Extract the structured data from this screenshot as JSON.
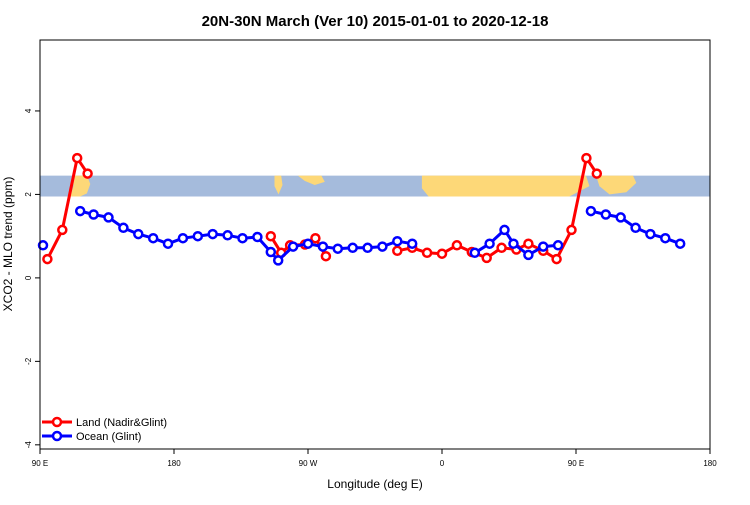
{
  "chart_data": {
    "type": "line",
    "title": "20N-30N March (Ver 10)   2015-01-01 to 2020-12-18",
    "xlabel": "Longitude (deg E)",
    "ylabel": "XCO2 - MLO trend (ppm)",
    "xlim": [
      90,
      540
    ],
    "ylim": [
      -4.1,
      5.7
    ],
    "x_ticks": [
      {
        "value": 90,
        "label": "90 E"
      },
      {
        "value": 180,
        "label": "180"
      },
      {
        "value": 270,
        "label": "90 W"
      },
      {
        "value": 360,
        "label": "0"
      },
      {
        "value": 450,
        "label": "90 E"
      },
      {
        "value": 540,
        "label": "180"
      }
    ],
    "y_ticks": [
      {
        "value": -4,
        "label": "-4"
      },
      {
        "value": -2,
        "label": "-2"
      },
      {
        "value": 0,
        "label": "0"
      },
      {
        "value": 2,
        "label": "2"
      },
      {
        "value": 4,
        "label": "4"
      }
    ],
    "grid": false,
    "legend_position": "bottom-left",
    "band": {
      "y_min": 1.95,
      "y_max": 2.45,
      "ocean_color": "#a5bbdc",
      "land_color": "#fdd878"
    },
    "series": [
      {
        "name": "Land (Nadir&Glint)",
        "color": "#ff0000",
        "segments": [
          [
            [
              95,
              0.45
            ],
            [
              105,
              1.15
            ],
            [
              115,
              2.87
            ],
            [
              122,
              2.5
            ]
          ],
          [
            [
              245,
              1.0
            ],
            [
              252,
              0.6
            ],
            [
              258,
              0.78
            ],
            [
              268,
              0.8
            ],
            [
              275,
              0.95
            ],
            [
              282,
              0.52
            ]
          ],
          [
            [
              330,
              0.65
            ],
            [
              340,
              0.72
            ],
            [
              350,
              0.6
            ],
            [
              360,
              0.58
            ],
            [
              370,
              0.78
            ],
            [
              380,
              0.62
            ],
            [
              390,
              0.48
            ],
            [
              400,
              0.72
            ],
            [
              410,
              0.68
            ],
            [
              418,
              0.82
            ],
            [
              428,
              0.65
            ],
            [
              437,
              0.45
            ],
            [
              447,
              1.15
            ],
            [
              457,
              2.87
            ],
            [
              464,
              2.5
            ]
          ]
        ]
      },
      {
        "name": "Ocean (Glint)",
        "color": "#0000ff",
        "segments": [
          [
            [
              92,
              0.78
            ]
          ],
          [
            [
              117,
              1.6
            ],
            [
              126,
              1.52
            ],
            [
              136,
              1.45
            ],
            [
              146,
              1.2
            ],
            [
              156,
              1.05
            ],
            [
              166,
              0.95
            ],
            [
              176,
              0.82
            ],
            [
              186,
              0.95
            ],
            [
              196,
              1.0
            ],
            [
              206,
              1.05
            ],
            [
              216,
              1.02
            ],
            [
              226,
              0.95
            ],
            [
              236,
              0.98
            ],
            [
              245,
              0.62
            ],
            [
              250,
              0.42
            ],
            [
              260,
              0.75
            ],
            [
              270,
              0.82
            ],
            [
              280,
              0.75
            ],
            [
              290,
              0.7
            ],
            [
              300,
              0.72
            ],
            [
              310,
              0.72
            ],
            [
              320,
              0.75
            ],
            [
              330,
              0.88
            ],
            [
              340,
              0.82
            ]
          ],
          [
            [
              382,
              0.6
            ],
            [
              392,
              0.82
            ],
            [
              402,
              1.15
            ],
            [
              408,
              0.82
            ],
            [
              418,
              0.55
            ],
            [
              428,
              0.75
            ],
            [
              438,
              0.78
            ]
          ],
          [
            [
              460,
              1.6
            ],
            [
              470,
              1.52
            ],
            [
              480,
              1.45
            ],
            [
              490,
              1.2
            ],
            [
              500,
              1.05
            ],
            [
              510,
              0.95
            ],
            [
              520,
              0.82
            ]
          ]
        ]
      }
    ]
  }
}
